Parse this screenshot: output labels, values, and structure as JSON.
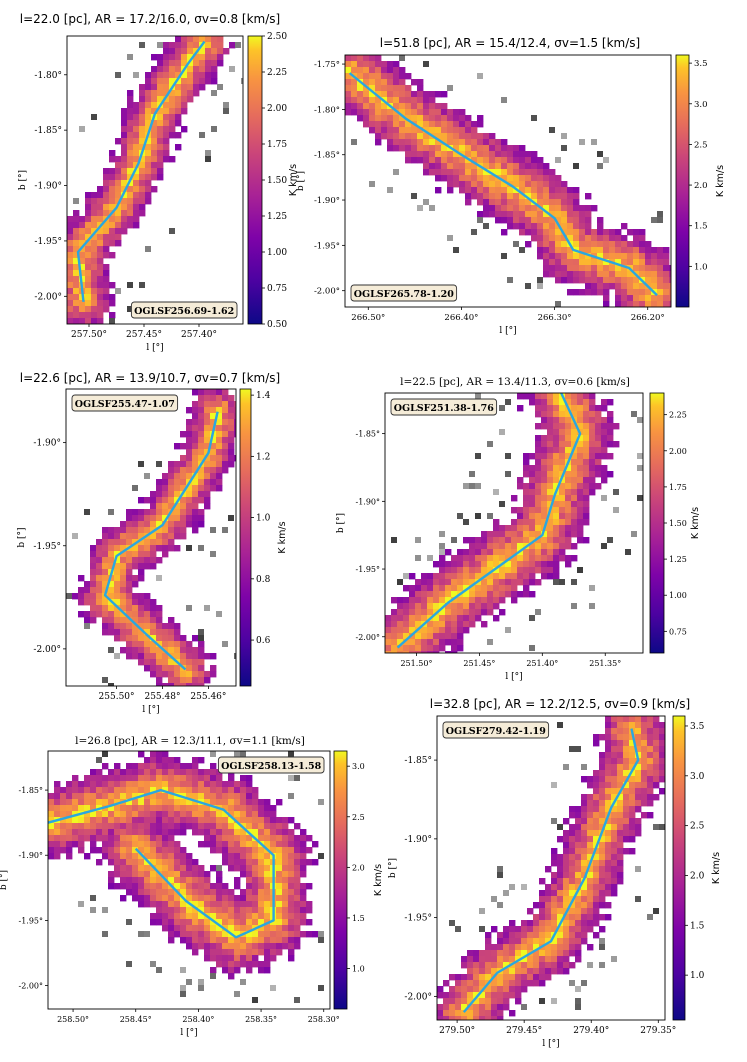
{
  "chart_data": [
    {
      "type": "heatmap",
      "title": "l=22.0 [pc], AR = 17.2/16.0, σv=0.8 [km/s]",
      "xlabel": "l [°]",
      "ylabel": "b [°]",
      "source_label": "OGLSF256.69-1.62",
      "xticks": [
        "257.50°",
        "257.45°",
        "257.40°"
      ],
      "yticks": [
        "-1.80°",
        "-1.85°",
        "-1.90°",
        "-1.95°",
        "-2.00°"
      ],
      "colorbar": {
        "label": "K km/s",
        "ticks": [
          "2.50",
          "2.25",
          "2.00",
          "1.75",
          "1.50",
          "1.25",
          "1.00",
          "0.75",
          "0.50"
        ],
        "range": [
          0.5,
          2.5
        ]
      },
      "spine": [
        [
          257.505,
          -2.005
        ],
        [
          257.51,
          -1.96
        ],
        [
          257.475,
          -1.92
        ],
        [
          257.455,
          -1.88
        ],
        [
          257.44,
          -1.835
        ],
        [
          257.41,
          -1.79
        ],
        [
          257.395,
          -1.77
        ]
      ]
    },
    {
      "type": "heatmap",
      "title": "l=51.8 [pc], AR = 15.4/12.4, σv=1.5 [km/s]",
      "xlabel": "l [°]",
      "ylabel": "b [°]",
      "source_label": "OGLSF265.78-1.20",
      "xticks": [
        "266.50°",
        "266.40°",
        "266.30°",
        "266.20°"
      ],
      "yticks": [
        "-1.75°",
        "-1.80°",
        "-1.85°",
        "-1.90°",
        "-1.95°",
        "-2.00°"
      ],
      "colorbar": {
        "label": "K km/s",
        "ticks": [
          "3.5",
          "3.0",
          "2.5",
          "2.0",
          "1.5",
          "1.0"
        ],
        "range": [
          0.5,
          3.6
        ]
      },
      "spine": [
        [
          266.52,
          -1.76
        ],
        [
          266.46,
          -1.81
        ],
        [
          266.4,
          -1.85
        ],
        [
          266.345,
          -1.885
        ],
        [
          266.3,
          -1.92
        ],
        [
          266.28,
          -1.955
        ],
        [
          266.22,
          -1.975
        ],
        [
          266.19,
          -2.005
        ]
      ]
    },
    {
      "type": "heatmap",
      "title": "l=22.6 [pc], AR = 13.9/10.7, σv=0.7 [km/s]",
      "xlabel": "l [°]",
      "ylabel": "b [°]",
      "source_label": "OGLSF255.47-1.07",
      "xticks": [
        "255.50°",
        "255.48°",
        "255.46°"
      ],
      "yticks": [
        "-1.90°",
        "-1.95°",
        "-2.00°"
      ],
      "colorbar": {
        "label": "K km/s",
        "ticks": [
          "1.4",
          "1.2",
          "1.0",
          "0.8",
          "0.6"
        ],
        "range": [
          0.45,
          1.42
        ]
      },
      "spine": [
        [
          255.47,
          -2.01
        ],
        [
          255.487,
          -1.993
        ],
        [
          255.505,
          -1.974
        ],
        [
          255.5,
          -1.955
        ],
        [
          255.48,
          -1.94
        ],
        [
          255.46,
          -1.905
        ],
        [
          255.456,
          -1.885
        ]
      ]
    },
    {
      "type": "heatmap",
      "title": "l=22.5 [pc], AR = 13.4/11.3, σv=0.6 [km/s]",
      "xlabel": "l [°]",
      "ylabel": "b [°]",
      "source_label": "OGLSF251.38-1.76",
      "xticks": [
        "251.50°",
        "251.45°",
        "251.40°",
        "251.35°"
      ],
      "yticks": [
        "-1.85°",
        "-1.90°",
        "-1.95°",
        "-2.00°"
      ],
      "colorbar": {
        "label": "K km/s",
        "ticks": [
          "2.25",
          "2.00",
          "1.75",
          "1.50",
          "1.25",
          "1.00",
          "0.75"
        ],
        "range": [
          0.6,
          2.4
        ]
      },
      "spine": [
        [
          251.515,
          -2.008
        ],
        [
          251.475,
          -1.975
        ],
        [
          251.43,
          -1.945
        ],
        [
          251.4,
          -1.925
        ],
        [
          251.39,
          -1.895
        ],
        [
          251.37,
          -1.85
        ],
        [
          251.385,
          -1.82
        ]
      ]
    },
    {
      "type": "heatmap",
      "title": "l=26.8 [pc], AR = 12.3/11.1, σv=1.1 [km/s]",
      "xlabel": "l [°]",
      "ylabel": "b [°]",
      "source_label": "OGLSF258.13-1.58",
      "xticks": [
        "258.50°",
        "258.45°",
        "258.40°",
        "258.35°",
        "258.30°"
      ],
      "yticks": [
        "-1.85°",
        "-1.90°",
        "-1.95°",
        "-2.00°"
      ],
      "colorbar": {
        "label": "K km/s",
        "ticks": [
          "3.0",
          "2.5",
          "2.0",
          "1.5",
          "1.0"
        ],
        "range": [
          0.6,
          3.15
        ]
      },
      "spine": [
        [
          258.52,
          -1.875
        ],
        [
          258.47,
          -1.862
        ],
        [
          258.43,
          -1.85
        ],
        [
          258.38,
          -1.865
        ],
        [
          258.34,
          -1.9
        ],
        [
          258.34,
          -1.95
        ],
        [
          258.37,
          -1.963
        ],
        [
          258.41,
          -1.935
        ],
        [
          258.45,
          -1.895
        ]
      ]
    },
    {
      "type": "heatmap",
      "title": "l=32.8 [pc], AR = 12.2/12.5, σv=0.9 [km/s]",
      "xlabel": "l [°]",
      "ylabel": "b [°]",
      "source_label": "OGLSF279.42-1.19",
      "xticks": [
        "279.50°",
        "279.45°",
        "279.40°",
        "279.35°"
      ],
      "yticks": [
        "-1.85°",
        "-1.90°",
        "-1.95°",
        "-2.00°"
      ],
      "colorbar": {
        "label": "K km/s",
        "ticks": [
          "3.5",
          "3.0",
          "2.5",
          "2.0",
          "1.5",
          "1.0"
        ],
        "range": [
          0.55,
          3.6
        ]
      },
      "spine": [
        [
          279.495,
          -2.01
        ],
        [
          279.47,
          -1.985
        ],
        [
          279.43,
          -1.965
        ],
        [
          279.405,
          -1.925
        ],
        [
          279.385,
          -1.88
        ],
        [
          279.365,
          -1.85
        ],
        [
          279.37,
          -1.83
        ]
      ]
    }
  ]
}
